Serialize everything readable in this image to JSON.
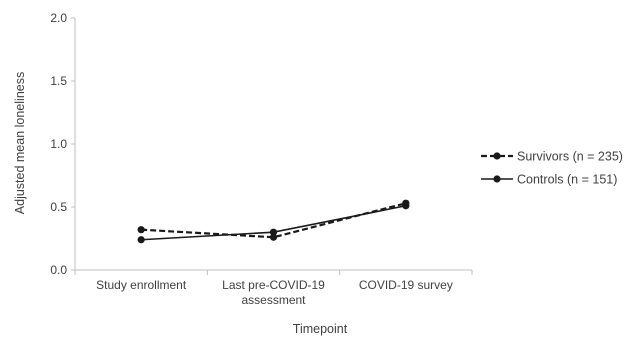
{
  "chart_data": {
    "type": "line",
    "title": "",
    "xlabel": "Timepoint",
    "ylabel": "Adjusted mean loneliness",
    "ylim": [
      0,
      2.0
    ],
    "yticks": [
      "0.0",
      "0.5",
      "1.0",
      "1.5",
      "2.0"
    ],
    "categories": [
      [
        "Study enrollment"
      ],
      [
        "Last pre-COVID-19",
        "assessment"
      ],
      [
        "COVID-19 survey"
      ]
    ],
    "series": [
      {
        "name": "Survivors (n = 235)",
        "values": [
          0.32,
          0.26,
          0.53
        ],
        "line_style": "dashed",
        "color": "#1a1a1a"
      },
      {
        "name": "Controls (n = 151)",
        "values": [
          0.24,
          0.3,
          0.51
        ],
        "line_style": "solid",
        "color": "#1a1a1a"
      }
    ],
    "legend_position": "right",
    "grid": false
  },
  "colors": {
    "axis": "#bfbfbf",
    "text": "#404040",
    "series": "#1a1a1a"
  }
}
